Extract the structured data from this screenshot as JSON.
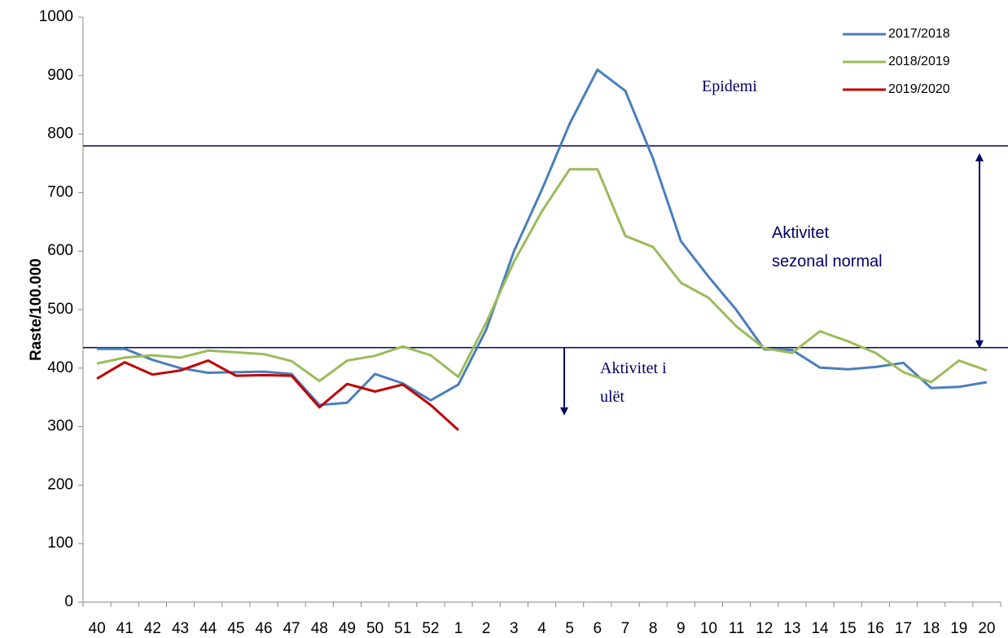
{
  "chart_data": {
    "type": "line",
    "y_label": "Raste/100.000",
    "categories": [
      "40",
      "41",
      "42",
      "43",
      "44",
      "45",
      "46",
      "47",
      "48",
      "49",
      "50",
      "51",
      "52",
      "1",
      "2",
      "3",
      "4",
      "5",
      "6",
      "7",
      "8",
      "9",
      "10",
      "11",
      "12",
      "13",
      "14",
      "15",
      "16",
      "17",
      "18",
      "19",
      "20"
    ],
    "series": [
      {
        "name": "2017/2018",
        "color": "#4a7ebb",
        "values": [
          433,
          433,
          414,
          400,
          392,
          393,
          394,
          390,
          337,
          341,
          390,
          374,
          345,
          372,
          466,
          600,
          705,
          818,
          910,
          874,
          758,
          617,
          556,
          499,
          432,
          431,
          401,
          398,
          402,
          409,
          366,
          368,
          376
        ]
      },
      {
        "name": "2018/2019",
        "color": "#9bbb59",
        "values": [
          408,
          418,
          422,
          418,
          430,
          427,
          424,
          412,
          378,
          413,
          421,
          437,
          422,
          385,
          478,
          582,
          668,
          740,
          740,
          626,
          607,
          546,
          520,
          471,
          434,
          426,
          463,
          446,
          426,
          393,
          376,
          413,
          396
        ]
      },
      {
        "name": "2019/2020",
        "color": "#c00000",
        "values": [
          382,
          410,
          389,
          396,
          413,
          387,
          388,
          387,
          333,
          373,
          360,
          372,
          337,
          294,
          null,
          null,
          null,
          null,
          null,
          null,
          null,
          null,
          null,
          null,
          null,
          null,
          null,
          null,
          null,
          null,
          null,
          null,
          null
        ]
      }
    ],
    "ylim": [
      0,
      1000
    ],
    "yticks": [
      0,
      100,
      200,
      300,
      400,
      500,
      600,
      700,
      800,
      900,
      1000
    ],
    "grid": false,
    "legend": "top-right",
    "reference_lines": [
      {
        "value": 780,
        "color": "#000066"
      },
      {
        "value": 435,
        "color": "#000066"
      }
    ],
    "annotations": [
      {
        "lines": [
          "Epidemi"
        ]
      },
      {
        "lines": [
          "Aktivitet",
          "sezonal normal"
        ]
      },
      {
        "lines": [
          "Aktivitet i",
          "ulët"
        ]
      }
    ]
  }
}
